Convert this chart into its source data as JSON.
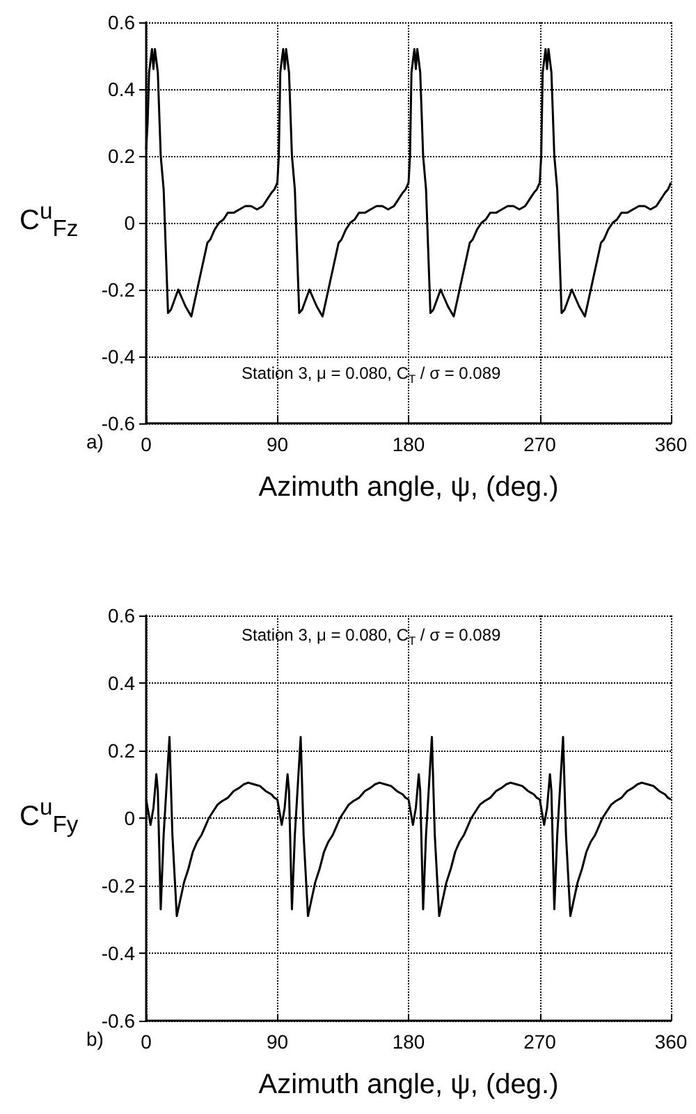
{
  "chart_data": [
    {
      "type": "line",
      "xlabel": "Azimuth angle, ψ, (deg.)",
      "ylabel": "C$^{u}$$_{Fz}$",
      "annotations": [
        "Station 3, μ = 0.080, C$_{T}$ / σ = 0.089",
        "a)"
      ],
      "x": [
        0,
        1,
        2,
        4,
        5,
        6,
        8,
        10,
        11,
        12,
        15,
        17,
        22,
        27,
        31,
        35,
        37,
        40,
        42,
        44,
        47,
        50,
        53,
        56,
        60,
        64,
        68,
        72,
        76,
        80,
        83,
        86,
        88,
        90,
        91,
        92,
        94,
        95,
        96,
        98,
        100,
        101,
        102,
        105,
        107,
        112,
        117,
        121,
        125,
        127,
        130,
        132,
        134,
        137,
        140,
        143,
        146,
        150,
        154,
        158,
        162,
        166,
        170,
        173,
        176,
        178,
        180,
        181,
        182,
        184,
        185,
        186,
        188,
        190,
        191,
        192,
        195,
        197,
        202,
        207,
        211,
        215,
        217,
        220,
        222,
        224,
        227,
        230,
        233,
        236,
        240,
        244,
        248,
        252,
        256,
        260,
        263,
        266,
        268,
        270,
        271,
        272,
        274,
        275,
        276,
        278,
        280,
        281,
        282,
        285,
        287,
        292,
        297,
        301,
        305,
        307,
        310,
        312,
        314,
        317,
        320,
        323,
        326,
        330,
        334,
        338,
        342,
        346,
        350,
        353,
        356,
        358,
        360
      ],
      "series": [
        {
          "color": "#000000",
          "values": [
            0.22,
            0.3,
            0.45,
            0.52,
            0.46,
            0.52,
            0.45,
            0.2,
            0.15,
            0.1,
            -0.27,
            -0.26,
            -0.2,
            -0.25,
            -0.28,
            -0.2,
            -0.16,
            -0.1,
            -0.06,
            -0.05,
            -0.02,
            0,
            0.01,
            0.03,
            0.03,
            0.04,
            0.05,
            0.05,
            0.04,
            0.05,
            0.07,
            0.09,
            0.1,
            0.12,
            0.2,
            0.45,
            0.52,
            0.46,
            0.52,
            0.45,
            0.2,
            0.15,
            0.1,
            -0.27,
            -0.26,
            -0.2,
            -0.25,
            -0.28,
            -0.2,
            -0.16,
            -0.1,
            -0.06,
            -0.05,
            -0.02,
            0,
            0.01,
            0.03,
            0.03,
            0.04,
            0.05,
            0.05,
            0.04,
            0.05,
            0.07,
            0.09,
            0.1,
            0.12,
            0.2,
            0.45,
            0.52,
            0.46,
            0.52,
            0.45,
            0.2,
            0.15,
            0.1,
            -0.27,
            -0.26,
            -0.2,
            -0.25,
            -0.28,
            -0.2,
            -0.16,
            -0.1,
            -0.06,
            -0.05,
            -0.02,
            0,
            0.01,
            0.03,
            0.03,
            0.04,
            0.05,
            0.05,
            0.04,
            0.05,
            0.07,
            0.09,
            0.1,
            0.12,
            0.2,
            0.45,
            0.52,
            0.46,
            0.52,
            0.45,
            0.2,
            0.15,
            0.1,
            -0.27,
            -0.26,
            -0.2,
            -0.25,
            -0.28,
            -0.2,
            -0.16,
            -0.1,
            -0.06,
            -0.05,
            -0.02,
            0,
            0.01,
            0.03,
            0.03,
            0.04,
            0.05,
            0.05,
            0.04,
            0.05,
            0.07,
            0.09,
            0.1,
            0.12
          ]
        }
      ],
      "xlim": [
        0,
        360
      ],
      "xticks": [
        0,
        90,
        180,
        270,
        360
      ],
      "ylim": [
        -0.6,
        0.6
      ],
      "yticks": [
        -0.6,
        -0.4,
        -0.2,
        0,
        0.2,
        0.4,
        0.6
      ],
      "grid": true,
      "marker": "none",
      "line_style": "solid"
    },
    {
      "type": "line",
      "xlabel": "Azimuth angle, ψ, (deg.)",
      "ylabel": "C$^{u}$$_{Fy}$",
      "annotations": [
        "Station 3, μ = 0.080, C$_{T}$ / σ = 0.089",
        "b)"
      ],
      "x": [
        0,
        3,
        5,
        7,
        8,
        10,
        12,
        16,
        18,
        21,
        23,
        26,
        29,
        32,
        35,
        38,
        40,
        43,
        46,
        49,
        52,
        56,
        60,
        64,
        67,
        70,
        74,
        78,
        82,
        86,
        88,
        90,
        93,
        95,
        97,
        98,
        100,
        102,
        106,
        108,
        111,
        113,
        116,
        119,
        122,
        125,
        128,
        130,
        133,
        136,
        139,
        142,
        146,
        150,
        154,
        157,
        160,
        164,
        168,
        172,
        176,
        178,
        180,
        183,
        185,
        187,
        188,
        190,
        192,
        196,
        198,
        201,
        203,
        206,
        209,
        212,
        215,
        218,
        220,
        223,
        226,
        229,
        232,
        236,
        240,
        244,
        247,
        250,
        254,
        258,
        262,
        266,
        268,
        270,
        273,
        275,
        277,
        278,
        280,
        282,
        286,
        288,
        291,
        293,
        296,
        299,
        302,
        305,
        308,
        310,
        313,
        316,
        319,
        322,
        326,
        330,
        334,
        337,
        340,
        344,
        348,
        352,
        356,
        358,
        360
      ],
      "series": [
        {
          "color": "#000000",
          "values": [
            0.055,
            -0.02,
            0.03,
            0.13,
            0.08,
            -0.27,
            -0.05,
            0.24,
            -0.05,
            -0.29,
            -0.25,
            -0.19,
            -0.15,
            -0.1,
            -0.07,
            -0.05,
            -0.03,
            0,
            0.02,
            0.04,
            0.05,
            0.06,
            0.08,
            0.09,
            0.1,
            0.105,
            0.1,
            0.095,
            0.08,
            0.07,
            0.06,
            0.055,
            -0.02,
            0.03,
            0.13,
            0.08,
            -0.27,
            -0.05,
            0.24,
            -0.05,
            -0.29,
            -0.25,
            -0.19,
            -0.15,
            -0.1,
            -0.07,
            -0.05,
            -0.03,
            0,
            0.02,
            0.04,
            0.05,
            0.06,
            0.08,
            0.09,
            0.1,
            0.105,
            0.1,
            0.095,
            0.08,
            0.07,
            0.06,
            0.055,
            -0.02,
            0.03,
            0.13,
            0.08,
            -0.27,
            -0.05,
            0.24,
            -0.05,
            -0.29,
            -0.25,
            -0.19,
            -0.15,
            -0.1,
            -0.07,
            -0.05,
            -0.03,
            0,
            0.02,
            0.04,
            0.05,
            0.06,
            0.08,
            0.09,
            0.1,
            0.105,
            0.1,
            0.095,
            0.08,
            0.07,
            0.06,
            0.055,
            -0.02,
            0.03,
            0.13,
            0.08,
            -0.27,
            -0.05,
            0.24,
            -0.05,
            -0.29,
            -0.25,
            -0.19,
            -0.15,
            -0.1,
            -0.07,
            -0.05,
            -0.03,
            0,
            0.02,
            0.04,
            0.05,
            0.06,
            0.08,
            0.09,
            0.1,
            0.105,
            0.1,
            0.095,
            0.08,
            0.07,
            0.06,
            0.055
          ]
        }
      ],
      "xlim": [
        0,
        360
      ],
      "xticks": [
        0,
        90,
        180,
        270,
        360
      ],
      "ylim": [
        -0.6,
        0.6
      ],
      "yticks": [
        -0.6,
        -0.4,
        -0.2,
        0,
        0.2,
        0.4,
        0.6
      ],
      "grid": true,
      "marker": "none",
      "line_style": "solid"
    }
  ]
}
